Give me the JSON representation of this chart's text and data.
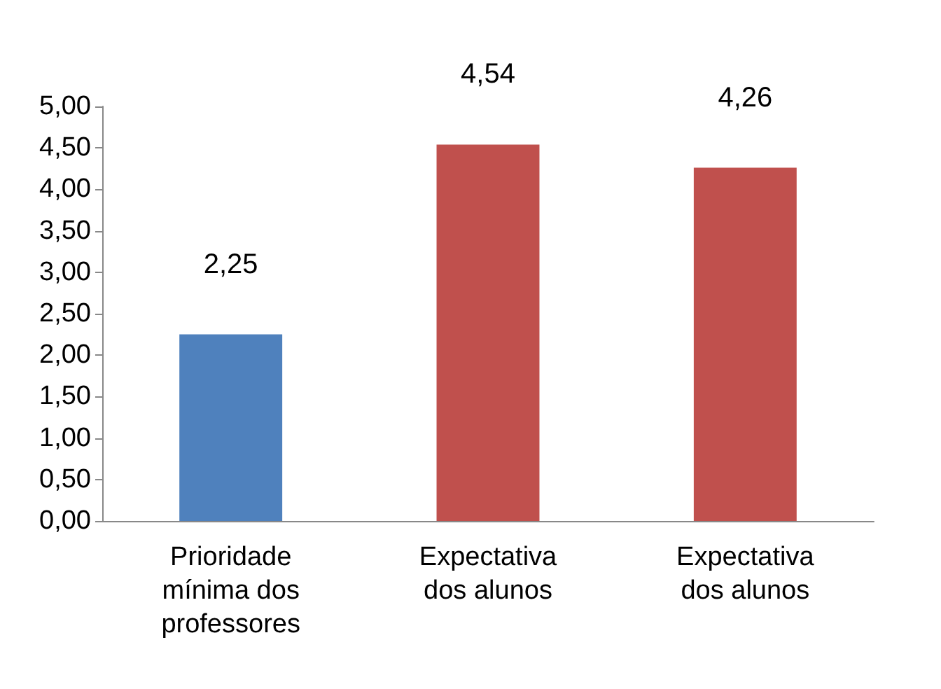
{
  "chart_data": {
    "type": "bar",
    "categories": [
      "Prioridade\nmínima dos\nprofessores",
      "Expectativa\ndos alunos",
      "Expectativa\ndos alunos"
    ],
    "values": [
      2.25,
      4.54,
      4.26
    ],
    "colors": [
      "#4f81bd",
      "#c0504d",
      "#c0504d"
    ],
    "value_labels": [
      "2,25",
      "4,54",
      "4,26"
    ],
    "ylim": [
      0,
      5
    ],
    "yticks": [
      {
        "value": 0,
        "label": "0,00"
      },
      {
        "value": 0.5,
        "label": "0,50"
      },
      {
        "value": 1,
        "label": "1,00"
      },
      {
        "value": 1.5,
        "label": "1,50"
      },
      {
        "value": 2,
        "label": "2,00"
      },
      {
        "value": 2.5,
        "label": "2,50"
      },
      {
        "value": 3,
        "label": "3,00"
      },
      {
        "value": 3.5,
        "label": "3,50"
      },
      {
        "value": 4,
        "label": "4,00"
      },
      {
        "value": 4.5,
        "label": "4,50"
      },
      {
        "value": 5,
        "label": "5,00"
      }
    ],
    "grid": false
  }
}
